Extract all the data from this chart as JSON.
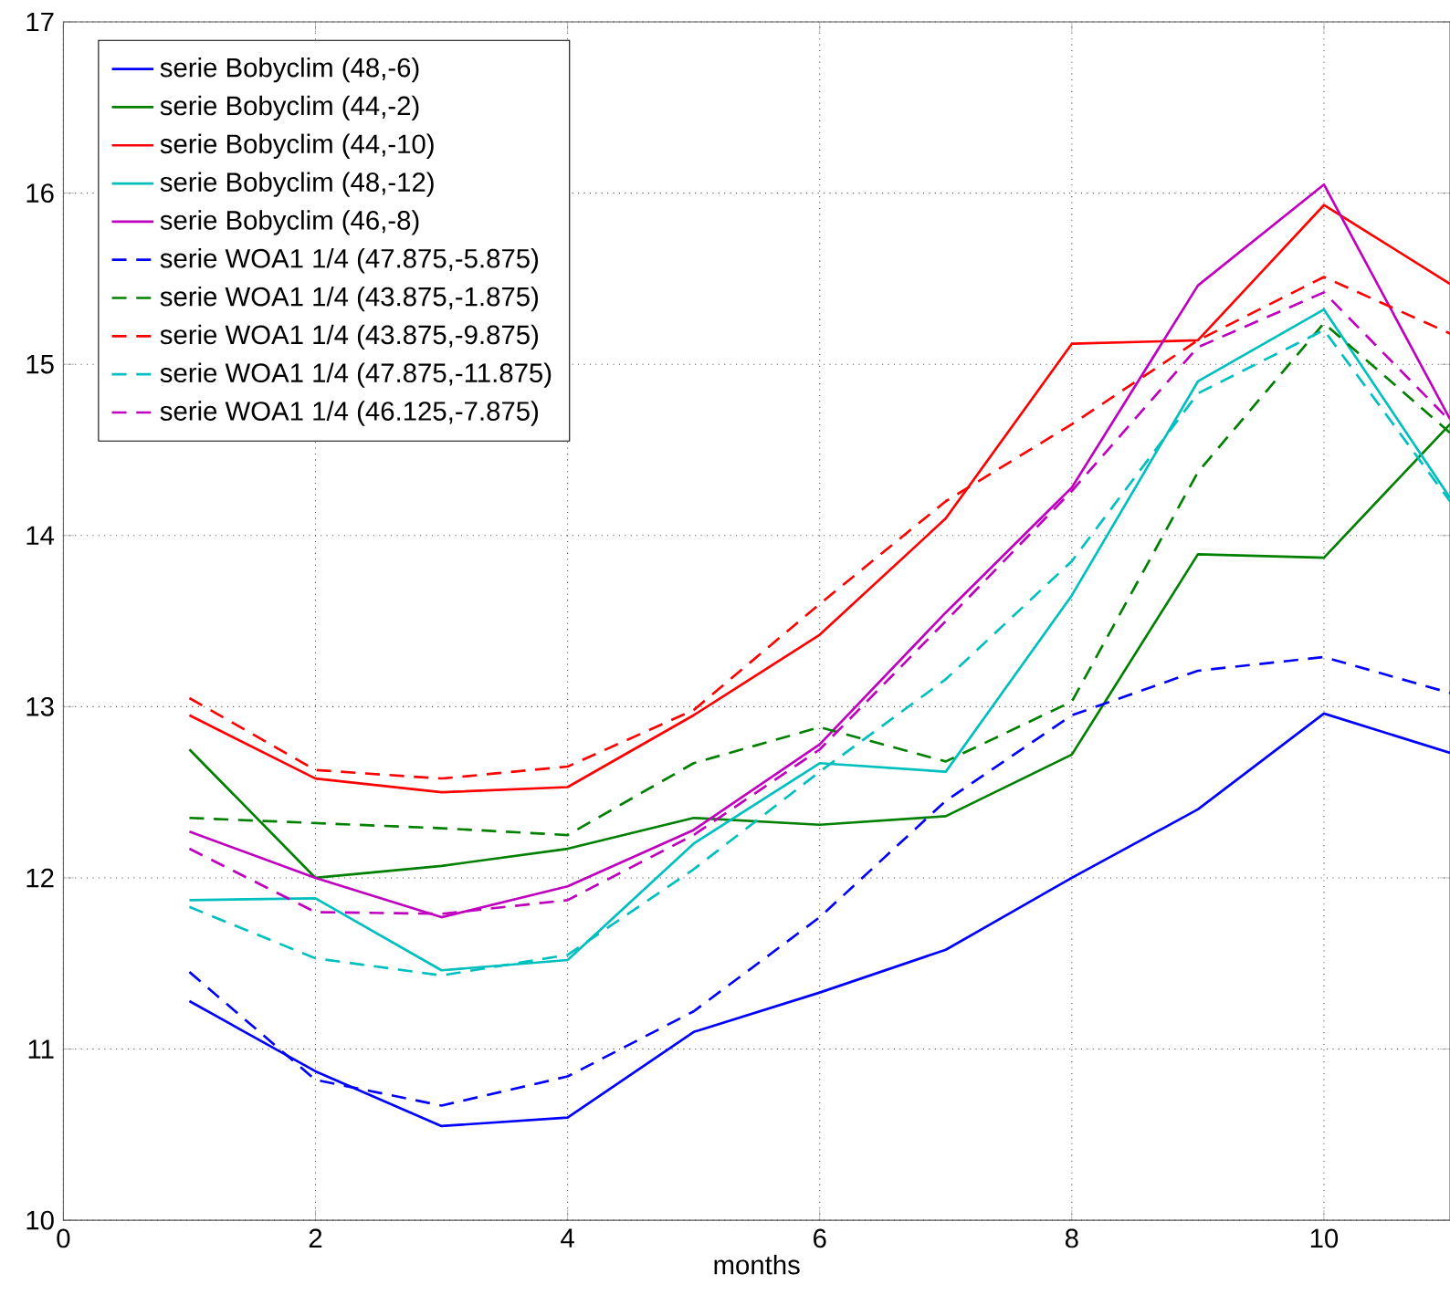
{
  "chart_data": {
    "type": "line",
    "xlabel": "months",
    "x": [
      1,
      2,
      3,
      4,
      5,
      6,
      7,
      8,
      9,
      10,
      11
    ],
    "xlim": [
      0,
      11
    ],
    "xticks": [
      0,
      2,
      4,
      6,
      8,
      10
    ],
    "ylim": [
      10,
      17
    ],
    "yticks": [
      10,
      11,
      12,
      13,
      14,
      15,
      16,
      17
    ],
    "grid": true,
    "legend": "top left",
    "marker": "none",
    "series": [
      {
        "name": "serie Bobyclim (48,-6)",
        "color": "#0000ff",
        "line_style": "solid",
        "values": [
          11.28,
          10.87,
          10.55,
          10.6,
          11.1,
          11.33,
          11.58,
          12.0,
          12.4,
          12.96,
          12.73
        ]
      },
      {
        "name": "serie Bobyclim (44,-2)",
        "color": "#008000",
        "line_style": "solid",
        "values": [
          12.75,
          12.0,
          12.07,
          12.17,
          12.35,
          12.31,
          12.36,
          12.72,
          13.89,
          13.87,
          14.65
        ]
      },
      {
        "name": "serie Bobyclim (44,-10)",
        "color": "#ff0000",
        "line_style": "solid",
        "values": [
          12.95,
          12.58,
          12.5,
          12.53,
          12.95,
          13.42,
          14.1,
          15.12,
          15.14,
          15.93,
          15.47
        ]
      },
      {
        "name": "serie Bobyclim (48,-12)",
        "color": "#00bfbf",
        "line_style": "solid",
        "values": [
          11.87,
          11.88,
          11.46,
          11.52,
          12.2,
          12.67,
          12.62,
          13.65,
          14.9,
          15.32,
          14.22
        ]
      },
      {
        "name": "serie Bobyclim (46,-8)",
        "color": "#bf00bf",
        "line_style": "solid",
        "values": [
          12.27,
          12.0,
          11.77,
          11.95,
          12.28,
          12.78,
          13.55,
          14.28,
          15.46,
          16.05,
          14.68
        ]
      },
      {
        "name": "serie WOA1 1/4 (47.875,-5.875)",
        "color": "#0000ff",
        "line_style": "dashed",
        "values": [
          11.45,
          10.82,
          10.67,
          10.84,
          11.22,
          11.77,
          12.45,
          12.95,
          13.21,
          13.29,
          13.08
        ]
      },
      {
        "name": "serie WOA1 1/4 (43.875,-1.875)",
        "color": "#008000",
        "line_style": "dashed",
        "values": [
          12.35,
          12.32,
          12.29,
          12.25,
          12.67,
          12.88,
          12.68,
          13.03,
          14.37,
          15.24,
          14.6
        ]
      },
      {
        "name": "serie WOA1 1/4 (43.875,-9.875)",
        "color": "#ff0000",
        "line_style": "dashed",
        "values": [
          13.05,
          12.63,
          12.58,
          12.65,
          12.98,
          13.6,
          14.2,
          14.65,
          15.14,
          15.51,
          15.18
        ]
      },
      {
        "name": "serie WOA1 1/4 (47.875,-11.875)",
        "color": "#00bfbf",
        "line_style": "dashed",
        "values": [
          11.83,
          11.53,
          11.43,
          11.55,
          12.05,
          12.62,
          13.16,
          13.85,
          14.83,
          15.2,
          14.2
        ]
      },
      {
        "name": "serie WOA1 1/4 (46.125,-7.875)",
        "color": "#bf00bf",
        "line_style": "dashed",
        "values": [
          12.17,
          11.8,
          11.79,
          11.87,
          12.25,
          12.75,
          13.5,
          14.26,
          15.1,
          15.42,
          14.67
        ]
      }
    ]
  }
}
